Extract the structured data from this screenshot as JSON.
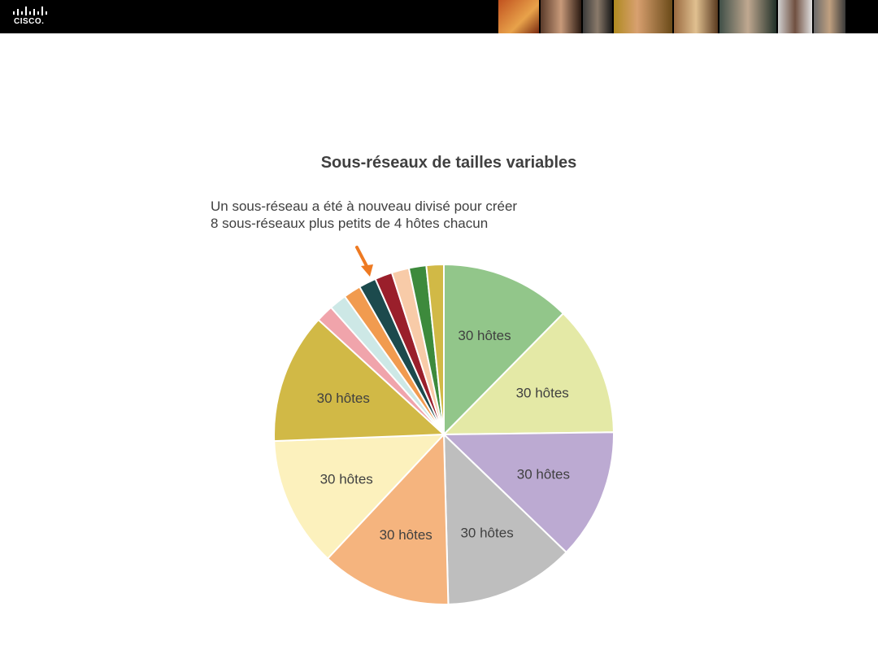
{
  "header": {
    "brand": "CISCO."
  },
  "chart_data": {
    "type": "pie",
    "title": "Sous-réseaux de tailles variables",
    "annotation": "Un sous-réseau a été à nouveau divisé pour créer 8 sous-réseaux plus petits de 4 hôtes chacun",
    "slices": [
      {
        "label": "30 hôtes",
        "value": 30,
        "color": "#92c68a"
      },
      {
        "label": "30 hôtes",
        "value": 30,
        "color": "#e4e9a6"
      },
      {
        "label": "30 hôtes",
        "value": 30,
        "color": "#bcaad2"
      },
      {
        "label": "30 hôtes",
        "value": 30,
        "color": "#bebebe"
      },
      {
        "label": "30 hôtes",
        "value": 30,
        "color": "#f5b47e"
      },
      {
        "label": "30 hôtes",
        "value": 30,
        "color": "#fcf1bd"
      },
      {
        "label": "30 hôtes",
        "value": 30,
        "color": "#d1b946"
      },
      {
        "label": "",
        "value": 4,
        "color": "#f0a4ab"
      },
      {
        "label": "",
        "value": 4,
        "color": "#cde8e6"
      },
      {
        "label": "",
        "value": 4,
        "color": "#f19b4f"
      },
      {
        "label": "",
        "value": 4,
        "color": "#1c4a4d"
      },
      {
        "label": "",
        "value": 4,
        "color": "#9a1f2b"
      },
      {
        "label": "",
        "value": 4,
        "color": "#f8cba8"
      },
      {
        "label": "",
        "value": 4,
        "color": "#3d8a3c"
      },
      {
        "label": "",
        "value": 4,
        "color": "#d1b946"
      }
    ],
    "arrow_color": "#ee7a22"
  }
}
